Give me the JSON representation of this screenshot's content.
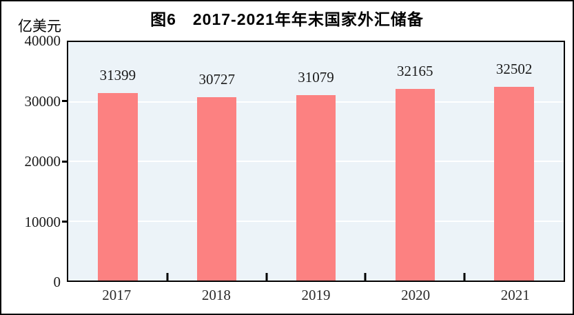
{
  "title": "图6　2017-2021年年末国家外汇储备",
  "unit_label": "亿美元",
  "chart_data": {
    "type": "bar",
    "title": "图6　2017-2021年年末国家外汇储备",
    "ylabel": "亿美元",
    "xlabel": "",
    "categories": [
      "2017",
      "2018",
      "2019",
      "2020",
      "2021"
    ],
    "values": [
      31399,
      30727,
      31079,
      32165,
      32502
    ],
    "data_labels": [
      "31399",
      "30727",
      "31079",
      "32165",
      "32502"
    ],
    "ylim": [
      0,
      40000
    ],
    "yticks": [
      0,
      10000,
      20000,
      30000,
      40000
    ],
    "ytick_labels": [
      "0",
      "10000",
      "20000",
      "30000",
      "40000"
    ],
    "grid": true,
    "gridline_values": [
      10000,
      20000,
      30000
    ],
    "legend_position": "none",
    "colors": {
      "bar": "#fc8181",
      "plot_background": "#ecf3f8",
      "gridline": "#ffffff",
      "axis": "#000000",
      "text": "#1a1a1a"
    }
  }
}
